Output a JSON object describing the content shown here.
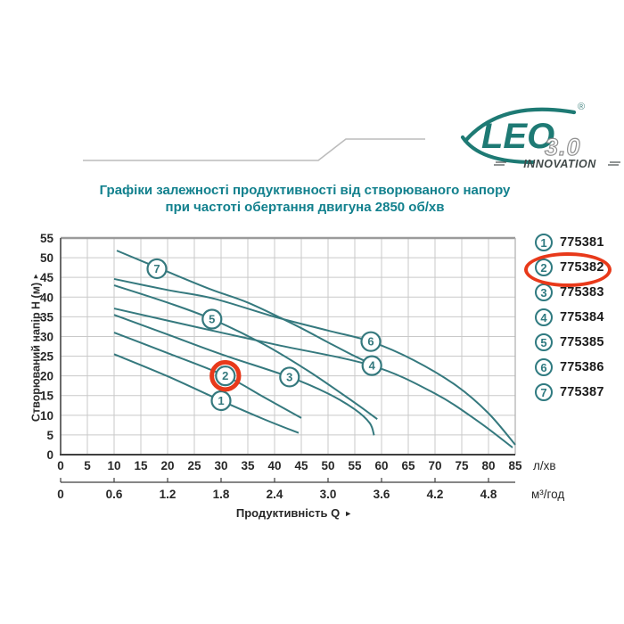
{
  "page_title": {
    "line1": "Графіки залежності продуктивності від створюваного напору",
    "line2": "при частоті обертання двигуна 2850 об/хв"
  },
  "logo": {
    "brand": "LEO",
    "registered_mark": "®",
    "version": "3.0",
    "tagline": "INNOVATION"
  },
  "colors": {
    "title_teal": "#11808d",
    "logo_teal": "#1e7a74",
    "curve_teal": "#35797e",
    "highlight_red": "#e8391a",
    "grid_gray": "#c9c9c9",
    "border_gray": "#9b9b9b",
    "axis_dark": "#3f3f3f",
    "tick_text": "#272727"
  },
  "chart_data": {
    "type": "line",
    "title": "Графіки залежності продуктивності від створюваного напору при частоті обертання двигуна 2850 об/хв",
    "grid": true,
    "legend_position": "right",
    "x_axis": {
      "label": "Продуктивність  Q",
      "arrow": "►",
      "primary_units": "л/хв",
      "primary": {
        "min": 0,
        "max": 85,
        "step": 5
      },
      "secondary_units": "м³/год",
      "secondary": {
        "min": 0,
        "max": 4.8,
        "step": 0.6,
        "lpm_per_unit": 16.6667
      }
    },
    "y_axis": {
      "label": "Створюваний напір H (м)",
      "arrow": "►",
      "min": 0,
      "max": 55,
      "step": 5
    },
    "series": [
      {
        "label": "1",
        "name": "775381",
        "highlighted": false,
        "points": [
          [
            10,
            25.5
          ],
          [
            20,
            19.9
          ],
          [
            30,
            13.7
          ],
          [
            38,
            9
          ],
          [
            44.5,
            5.5
          ]
        ],
        "label_at": [
          30,
          13.7
        ]
      },
      {
        "label": "2",
        "name": "775382",
        "highlighted": true,
        "points": [
          [
            10,
            31
          ],
          [
            20,
            25.8
          ],
          [
            30.8,
            20
          ],
          [
            38,
            14.6
          ],
          [
            45,
            9.3
          ]
        ],
        "label_at": [
          30.8,
          20
        ]
      },
      {
        "label": "3",
        "name": "775383",
        "highlighted": false,
        "points": [
          [
            10,
            35.5
          ],
          [
            20,
            30.5
          ],
          [
            30,
            25.5
          ],
          [
            42.8,
            19.7
          ],
          [
            50,
            15.5
          ],
          [
            55,
            11.5
          ],
          [
            57.8,
            8
          ],
          [
            58.6,
            4.9
          ]
        ],
        "label_at": [
          42.8,
          19.7
        ]
      },
      {
        "label": "4",
        "name": "775384",
        "highlighted": false,
        "points": [
          [
            10,
            37.1
          ],
          [
            25,
            32.5
          ],
          [
            40,
            28
          ],
          [
            58.2,
            22.6
          ],
          [
            70,
            15.5
          ],
          [
            78,
            8.5
          ],
          [
            84.5,
            1.8
          ]
        ],
        "label_at": [
          58.2,
          22.6
        ]
      },
      {
        "label": "5",
        "name": "775385",
        "highlighted": false,
        "points": [
          [
            10,
            43
          ],
          [
            20,
            38.6
          ],
          [
            28.3,
            34.4
          ],
          [
            38,
            28
          ],
          [
            46,
            21.5
          ],
          [
            52,
            16
          ],
          [
            56,
            12.2
          ],
          [
            59.2,
            9
          ]
        ],
        "label_at": [
          28.3,
          34.4
        ]
      },
      {
        "label": "6",
        "name": "775386",
        "highlighted": false,
        "points": [
          [
            10,
            44.6
          ],
          [
            20,
            41.8
          ],
          [
            28.7,
            39.6
          ],
          [
            40,
            35
          ],
          [
            50,
            31.5
          ],
          [
            58,
            28.7
          ],
          [
            66,
            24
          ],
          [
            74,
            17.5
          ],
          [
            80,
            10.5
          ],
          [
            85,
            2.5
          ]
        ],
        "label_at": [
          58,
          28.7
        ]
      },
      {
        "label": "7",
        "name": "775387",
        "highlighted": false,
        "points": [
          [
            10.5,
            51.8
          ],
          [
            19,
            47
          ],
          [
            28,
            42
          ],
          [
            35,
            38.6
          ],
          [
            43.7,
            33
          ],
          [
            50,
            28.5
          ],
          [
            55,
            25
          ],
          [
            58.5,
            22.8
          ]
        ],
        "label_at": [
          18,
          47.2
        ]
      }
    ]
  }
}
